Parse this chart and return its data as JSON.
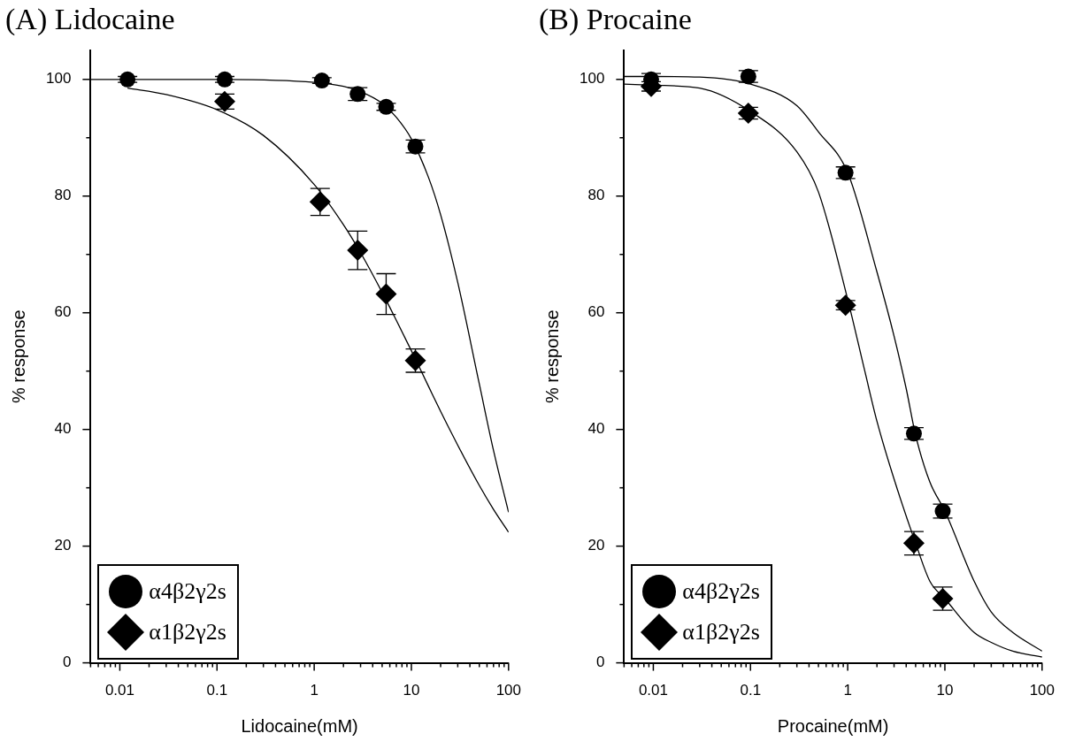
{
  "chart_data": [
    {
      "type": "scatter",
      "title": "(A) Lidocaine",
      "xlabel": "Lidocaine(mM)",
      "ylabel": "% response",
      "log": "x",
      "legend": "bottom left",
      "xlim": [
        0.005,
        100
      ],
      "ylim": [
        0,
        105
      ],
      "xticks": [
        {
          "value": 0.005,
          "label": null
        },
        {
          "value": 0.006,
          "label": null
        },
        {
          "value": 0.007,
          "label": null
        },
        {
          "value": 0.008,
          "label": null
        },
        {
          "value": 0.009,
          "label": null
        },
        0.01,
        {
          "value": 0.02,
          "label": null
        },
        {
          "value": 0.03,
          "label": null
        },
        {
          "value": 0.04,
          "label": null
        },
        {
          "value": 0.05,
          "label": null
        },
        {
          "value": 0.06,
          "label": null
        },
        {
          "value": 0.07,
          "label": null
        },
        {
          "value": 0.08,
          "label": null
        },
        {
          "value": 0.09,
          "label": null
        },
        0.1,
        {
          "value": 0.2,
          "label": null
        },
        {
          "value": 0.3,
          "label": null
        },
        {
          "value": 0.4,
          "label": null
        },
        {
          "value": 0.5,
          "label": null
        },
        {
          "value": 0.6,
          "label": null
        },
        {
          "value": 0.7,
          "label": null
        },
        {
          "value": 0.8,
          "label": null
        },
        {
          "value": 0.9,
          "label": null
        },
        1,
        {
          "value": 2,
          "label": null
        },
        {
          "value": 3,
          "label": null
        },
        {
          "value": 4,
          "label": null
        },
        {
          "value": 5,
          "label": null
        },
        {
          "value": 6,
          "label": null
        },
        {
          "value": 7,
          "label": null
        },
        {
          "value": 8,
          "label": null
        },
        {
          "value": 9,
          "label": null
        },
        10,
        {
          "value": 20,
          "label": null
        },
        {
          "value": 30,
          "label": null
        },
        {
          "value": 40,
          "label": null
        },
        {
          "value": 50,
          "label": null
        },
        {
          "value": 60,
          "label": null
        },
        {
          "value": 70,
          "label": null
        },
        {
          "value": 80,
          "label": null
        },
        {
          "value": 90,
          "label": null
        },
        100
      ],
      "yticks": [
        0,
        {
          "value": 10,
          "label": null
        },
        20,
        {
          "value": 30,
          "label": null
        },
        40,
        {
          "value": 50,
          "label": null
        },
        60,
        {
          "value": 70,
          "label": null
        },
        80,
        {
          "value": 90,
          "label": null
        },
        100
      ],
      "series": [
        {
          "type": "line",
          "color": "#000000",
          "marker": "none",
          "x": [
            0.005,
            0.1,
            1,
            2,
            3,
            5,
            7,
            10,
            15,
            20,
            30,
            50,
            70,
            100
          ],
          "values": [
            100,
            100,
            99.5,
            98.8,
            97.9,
            95.9,
            93.5,
            89.8,
            83.2,
            76.8,
            65.2,
            47.8,
            36.4,
            25.8
          ]
        },
        {
          "type": "line",
          "color": "#000000",
          "marker": "none",
          "x": [
            0.012,
            0.03,
            0.1,
            0.3,
            1,
            2,
            3,
            5,
            7,
            10,
            15,
            20,
            30,
            50,
            70,
            100
          ],
          "values": [
            98.5,
            97.4,
            94.8,
            90.4,
            82,
            75.1,
            70.3,
            63.5,
            58.7,
            53.5,
            47.4,
            43.1,
            37.3,
            30.4,
            26.3,
            22.4
          ]
        },
        {
          "type": "scatter",
          "name": "α4β2γ2s",
          "color": "#000000",
          "marker": "circle",
          "x": [
            0.012,
            0.12,
            1.2,
            2.8,
            5.5,
            11
          ],
          "values": [
            100,
            100,
            99.8,
            97.5,
            95.3,
            88.5
          ],
          "errors": [
            0.5,
            0.5,
            0.5,
            1.1,
            0.6,
            1.1
          ]
        },
        {
          "type": "scatter",
          "name": "α1β2γ2s",
          "color": "#000000",
          "marker": "diamond",
          "x": [
            0.12,
            1.15,
            2.8,
            5.5,
            11
          ],
          "values": [
            96.2,
            79,
            70.7,
            63.2,
            51.8
          ],
          "errors": [
            1.3,
            2.3,
            3.3,
            3.5,
            2
          ]
        }
      ]
    },
    {
      "type": "scatter",
      "title": "(B) Procaine",
      "xlabel": "Procaine(mM)",
      "ylabel": "% response",
      "log": "x",
      "legend": "bottom left",
      "xlim": [
        0.005,
        100
      ],
      "ylim": [
        0,
        105
      ],
      "xticks": [
        {
          "value": 0.005,
          "label": null
        },
        {
          "value": 0.006,
          "label": null
        },
        {
          "value": 0.007,
          "label": null
        },
        {
          "value": 0.008,
          "label": null
        },
        {
          "value": 0.009,
          "label": null
        },
        0.01,
        {
          "value": 0.02,
          "label": null
        },
        {
          "value": 0.03,
          "label": null
        },
        {
          "value": 0.04,
          "label": null
        },
        {
          "value": 0.05,
          "label": null
        },
        {
          "value": 0.06,
          "label": null
        },
        {
          "value": 0.07,
          "label": null
        },
        {
          "value": 0.08,
          "label": null
        },
        {
          "value": 0.09,
          "label": null
        },
        0.1,
        {
          "value": 0.2,
          "label": null
        },
        {
          "value": 0.3,
          "label": null
        },
        {
          "value": 0.4,
          "label": null
        },
        {
          "value": 0.5,
          "label": null
        },
        {
          "value": 0.6,
          "label": null
        },
        {
          "value": 0.7,
          "label": null
        },
        {
          "value": 0.8,
          "label": null
        },
        {
          "value": 0.9,
          "label": null
        },
        1,
        {
          "value": 2,
          "label": null
        },
        {
          "value": 3,
          "label": null
        },
        {
          "value": 4,
          "label": null
        },
        {
          "value": 5,
          "label": null
        },
        {
          "value": 6,
          "label": null
        },
        {
          "value": 7,
          "label": null
        },
        {
          "value": 8,
          "label": null
        },
        {
          "value": 9,
          "label": null
        },
        10,
        {
          "value": 20,
          "label": null
        },
        {
          "value": 30,
          "label": null
        },
        {
          "value": 40,
          "label": null
        },
        {
          "value": 50,
          "label": null
        },
        {
          "value": 60,
          "label": null
        },
        {
          "value": 70,
          "label": null
        },
        {
          "value": 80,
          "label": null
        },
        {
          "value": 90,
          "label": null
        },
        100
      ],
      "yticks": [
        0,
        {
          "value": 10,
          "label": null
        },
        20,
        {
          "value": 30,
          "label": null
        },
        40,
        {
          "value": 50,
          "label": null
        },
        60,
        {
          "value": 70,
          "label": null
        },
        80,
        {
          "value": 90,
          "label": null
        },
        100
      ],
      "series": [
        {
          "type": "line",
          "color": "#000000",
          "marker": "none",
          "x": [
            0.005,
            0.01,
            0.03,
            0.1,
            0.3,
            0.5,
            1,
            2,
            3,
            4,
            5,
            7,
            10,
            20,
            30,
            50,
            100
          ],
          "values": [
            100.5,
            100.5,
            100.4,
            99.2,
            95.5,
            91,
            84,
            67,
            56,
            47,
            39,
            31,
            26,
            14,
            8.7,
            5.2,
            2
          ]
        },
        {
          "type": "line",
          "color": "#000000",
          "marker": "none",
          "x": [
            0.005,
            0.01,
            0.03,
            0.1,
            0.3,
            0.5,
            1,
            1.5,
            2,
            3,
            5,
            7,
            10,
            20,
            30,
            50,
            100
          ],
          "values": [
            99.2,
            99,
            98.5,
            94.5,
            87.6,
            80.7,
            62.3,
            50,
            41.4,
            31.5,
            20.5,
            14,
            11,
            5.2,
            3.5,
            2,
            1
          ]
        },
        {
          "type": "scatter",
          "name": "α4β2γ2s",
          "color": "#000000",
          "marker": "circle",
          "x": [
            0.0095,
            0.095,
            0.95,
            4.8,
            9.5
          ],
          "values": [
            100,
            100.5,
            84,
            39.3,
            26
          ],
          "errors": [
            1,
            1,
            1,
            1,
            1.2
          ]
        },
        {
          "type": "scatter",
          "name": "α1β2γ2s",
          "color": "#000000",
          "marker": "diamond",
          "x": [
            0.0095,
            0.095,
            0.95,
            4.8,
            9.5
          ],
          "values": [
            98.8,
            94.2,
            61.3,
            20.5,
            11
          ],
          "errors": [
            0.8,
            1,
            0.8,
            2,
            2
          ]
        }
      ]
    }
  ]
}
